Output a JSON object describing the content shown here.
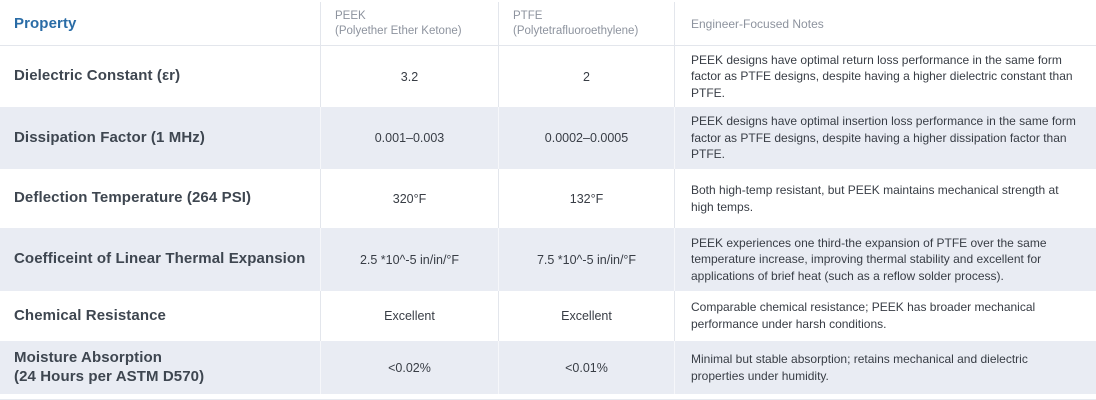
{
  "table": {
    "header": {
      "property": "Property",
      "peek_name": "PEEK",
      "peek_full": "(Polyether Ether Ketone)",
      "ptfe_name": "PTFE",
      "ptfe_full": "(Polytetrafluoroethylene)",
      "notes": "Engineer-Focused Notes"
    },
    "rows": [
      {
        "property": "Dielectric Constant (εr)",
        "property_sub": "",
        "peek": "3.2",
        "ptfe": "2",
        "notes": "PEEK designs have optimal return loss performance in the same form factor as PTFE designs, despite having a higher dielectric constant than PTFE."
      },
      {
        "property": "Dissipation Factor (1 MHz)",
        "property_sub": "",
        "peek": "0.001–0.003",
        "ptfe": "0.0002–0.0005",
        "notes": "PEEK designs have optimal insertion loss performance in the same form factor as PTFE designs, despite having a higher dissipation factor than PTFE."
      },
      {
        "property": "Deflection Temperature (264 PSI)",
        "property_sub": "",
        "peek": "320°F",
        "ptfe": "132°F",
        "notes": "Both high-temp resistant, but PEEK maintains mechanical strength at high temps."
      },
      {
        "property": "Coefficeint of Linear Thermal Expansion",
        "property_sub": "",
        "peek": "2.5 *10^-5 in/in/°F",
        "ptfe": "7.5 *10^-5 in/in/°F",
        "notes": "PEEK experiences one third-the expansion of PTFE over the same temperature increase, improving thermal stability and excellent for applications of brief heat (such as a reflow solder process)."
      },
      {
        "property": "Chemical Resistance",
        "property_sub": "",
        "peek": "Excellent",
        "ptfe": "Excellent",
        "notes": "Comparable chemical resistance; PEEK has broader mechanical performance under harsh conditions."
      },
      {
        "property": "Moisture Absorption",
        "property_sub": "(24 Hours per ASTM D570)",
        "peek": "<0.02%",
        "ptfe": "<0.01%",
        "notes": "Minimal but stable absorption; retains mechanical and dielectric properties under humidity."
      }
    ],
    "colors": {
      "accent_blue": "#2a6ca6",
      "row_shade": "#e9ecf3",
      "header_grey": "#8d939e"
    }
  }
}
